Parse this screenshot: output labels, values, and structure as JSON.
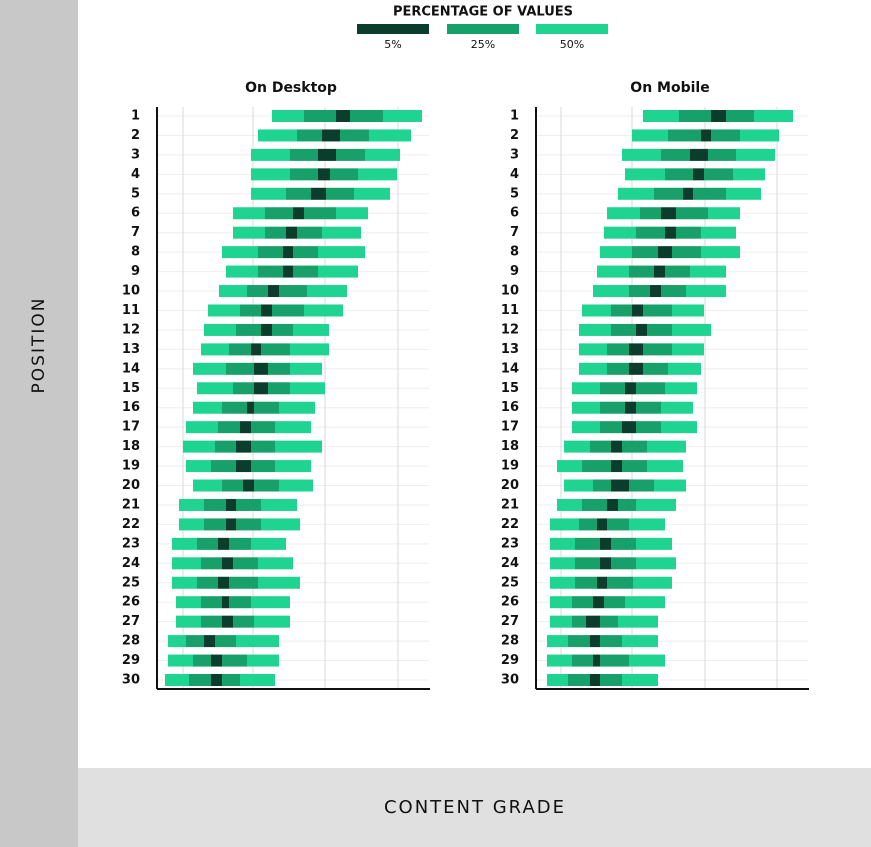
{
  "legend": {
    "title": "PERCENTAGE OF VALUES",
    "items": [
      {
        "name": "5%",
        "color": "#0a3d2b"
      },
      {
        "name": "25%",
        "color": "#17a06a"
      },
      {
        "name": "50%",
        "color": "#1fd390"
      }
    ]
  },
  "y_label": "POSITION",
  "x_label": "CONTENT GRADE",
  "chart_data": [
    {
      "type": "range-bar",
      "title": "On Desktop",
      "categories": [
        1,
        2,
        3,
        4,
        5,
        6,
        7,
        8,
        9,
        10,
        11,
        12,
        13,
        14,
        15,
        16,
        17,
        18,
        19,
        20,
        21,
        22,
        23,
        24,
        25,
        26,
        27,
        28,
        29,
        30
      ],
      "xlim": [
        0,
        272
      ],
      "xgrid": [
        26,
        96,
        168,
        241
      ],
      "ranges": [
        [
          115,
          147,
          179,
          193,
          226,
          265
        ],
        [
          101,
          140,
          165,
          183,
          212,
          254
        ],
        [
          94,
          133,
          161,
          179,
          208,
          243
        ],
        [
          94,
          133,
          161,
          173,
          201,
          240
        ],
        [
          94,
          129,
          154,
          169,
          197,
          233
        ],
        [
          76,
          108,
          136,
          147,
          179,
          211
        ],
        [
          76,
          108,
          129,
          140,
          165,
          204
        ],
        [
          65,
          101,
          126,
          136,
          161,
          208
        ],
        [
          69,
          101,
          126,
          136,
          161,
          201
        ],
        [
          62,
          90,
          111,
          122,
          150,
          190
        ],
        [
          51,
          83,
          104,
          115,
          147,
          186
        ],
        [
          47,
          79,
          104,
          115,
          136,
          172
        ],
        [
          44,
          72,
          94,
          104,
          133,
          172
        ],
        [
          36,
          69,
          97,
          111,
          133,
          165
        ],
        [
          40,
          76,
          97,
          111,
          133,
          168
        ],
        [
          36,
          65,
          90,
          97,
          122,
          158
        ],
        [
          29,
          61,
          83,
          94,
          118,
          154
        ],
        [
          26,
          58,
          79,
          94,
          118,
          165
        ],
        [
          29,
          54,
          79,
          94,
          118,
          154
        ],
        [
          36,
          65,
          86,
          97,
          122,
          156
        ],
        [
          22,
          47,
          69,
          79,
          104,
          140
        ],
        [
          22,
          47,
          69,
          79,
          104,
          143
        ],
        [
          15,
          40,
          61,
          72,
          94,
          129
        ],
        [
          15,
          44,
          65,
          76,
          101,
          136
        ],
        [
          15,
          40,
          61,
          72,
          101,
          143
        ],
        [
          19,
          44,
          65,
          72,
          94,
          133
        ],
        [
          19,
          44,
          65,
          76,
          97,
          133
        ],
        [
          11,
          29,
          47,
          58,
          79,
          122
        ],
        [
          11,
          36,
          54,
          65,
          90,
          122
        ],
        [
          8,
          32,
          54,
          65,
          83,
          118
        ]
      ]
    },
    {
      "type": "range-bar",
      "title": "On Mobile",
      "categories": [
        1,
        2,
        3,
        4,
        5,
        6,
        7,
        8,
        9,
        10,
        11,
        12,
        13,
        14,
        15,
        16,
        17,
        18,
        19,
        20,
        21,
        22,
        23,
        24,
        25,
        26,
        27,
        28,
        29,
        30
      ],
      "xlim": [
        0,
        272
      ],
      "xgrid": [
        25,
        96,
        169,
        241
      ],
      "ranges": [
        [
          107,
          143,
          175,
          190,
          218,
          257
        ],
        [
          96,
          132,
          165,
          175,
          204,
          243
        ],
        [
          86,
          125,
          154,
          172,
          200,
          239
        ],
        [
          89,
          129,
          157,
          168,
          197,
          229
        ],
        [
          82,
          118,
          147,
          157,
          190,
          225
        ],
        [
          71,
          104,
          125,
          140,
          172,
          204
        ],
        [
          68,
          100,
          129,
          140,
          165,
          200
        ],
        [
          64,
          96,
          122,
          136,
          165,
          204
        ],
        [
          61,
          93,
          118,
          129,
          154,
          190
        ],
        [
          57,
          93,
          114,
          125,
          150,
          190
        ],
        [
          46,
          75,
          96,
          107,
          136,
          168
        ],
        [
          43,
          75,
          100,
          111,
          136,
          175
        ],
        [
          43,
          71,
          93,
          107,
          136,
          168
        ],
        [
          43,
          71,
          93,
          107,
          132,
          165
        ],
        [
          36,
          64,
          89,
          100,
          129,
          161
        ],
        [
          36,
          64,
          89,
          100,
          125,
          157
        ],
        [
          36,
          64,
          86,
          100,
          125,
          161
        ],
        [
          28,
          54,
          75,
          86,
          111,
          150
        ],
        [
          21,
          46,
          75,
          86,
          111,
          147
        ],
        [
          28,
          57,
          75,
          93,
          118,
          150
        ],
        [
          21,
          46,
          71,
          82,
          100,
          140
        ],
        [
          14,
          43,
          61,
          71,
          93,
          129
        ],
        [
          14,
          39,
          64,
          75,
          100,
          136
        ],
        [
          14,
          39,
          64,
          75,
          100,
          140
        ],
        [
          14,
          39,
          61,
          71,
          97,
          136
        ],
        [
          14,
          36,
          57,
          68,
          89,
          129
        ],
        [
          14,
          36,
          50,
          64,
          82,
          122
        ],
        [
          11,
          32,
          54,
          64,
          86,
          122
        ],
        [
          11,
          36,
          57,
          64,
          93,
          129
        ],
        [
          11,
          32,
          54,
          64,
          86,
          122
        ]
      ]
    }
  ]
}
